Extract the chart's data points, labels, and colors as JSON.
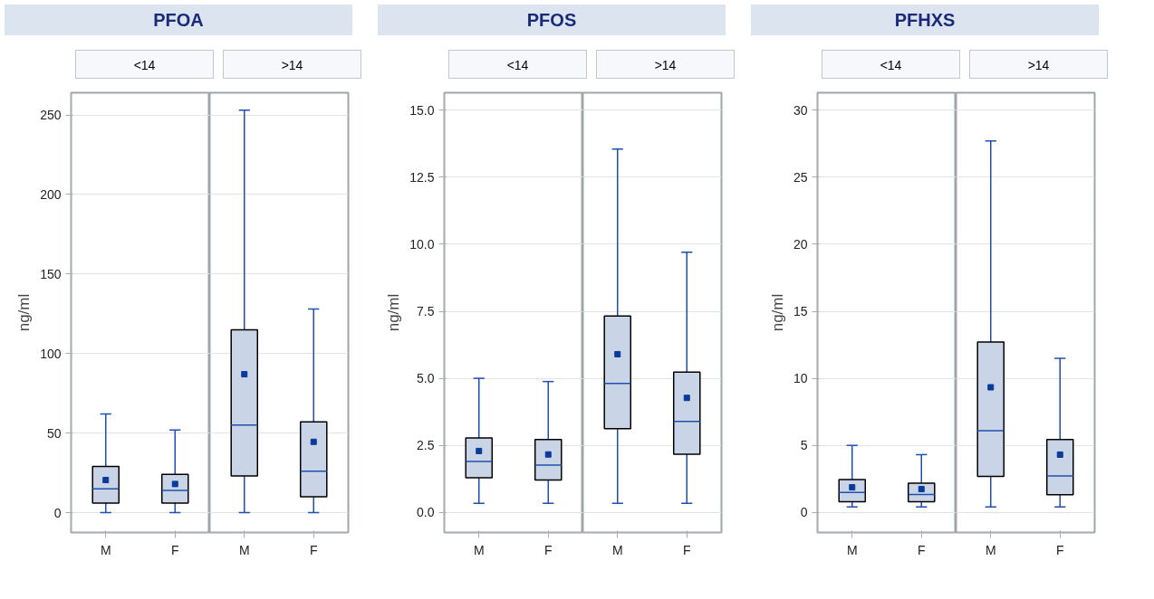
{
  "chart_data": [
    {
      "type": "box",
      "title": "PFOA",
      "ylabel": "ng/ml",
      "categories": [
        "M",
        "F",
        "M",
        "F"
      ],
      "annotations": [
        "<14",
        ">14"
      ],
      "ylim": [
        -12.5,
        264
      ],
      "yticks": [
        0,
        50,
        100,
        150,
        200,
        250
      ],
      "grid": "y",
      "marker": "square",
      "series": [
        {
          "color": "#c9d5e6",
          "boxes": [
            {
              "low": 0,
              "q1": 6,
              "median": 15,
              "q3": 29,
              "high": 62,
              "mean": 20.5
            },
            {
              "low": 0,
              "q1": 6,
              "median": 14,
              "q3": 24,
              "high": 52,
              "mean": 18
            },
            {
              "low": 0,
              "q1": 23,
              "median": 55,
              "q3": 115,
              "high": 253,
              "mean": 87
            },
            {
              "low": 0,
              "q1": 10,
              "median": 26,
              "q3": 57,
              "high": 128,
              "mean": 44.5
            }
          ]
        }
      ]
    },
    {
      "type": "box",
      "title": "PFOS",
      "ylabel": "ng/ml",
      "categories": [
        "M",
        "F",
        "M",
        "F"
      ],
      "annotations": [
        "<14",
        ">14"
      ],
      "ylim": [
        -0.75,
        15.65
      ],
      "yticks": [
        {
          "value": 0,
          "label": "0.0"
        },
        2.5,
        {
          "value": 5,
          "label": "5.0"
        },
        7.5,
        {
          "value": 10,
          "label": "10.0"
        },
        12.5,
        {
          "value": 15,
          "label": "15.0"
        }
      ],
      "grid": "y",
      "marker": "square",
      "series": [
        {
          "color": "#c9d5e6",
          "boxes": [
            {
              "low": 0.34,
              "q1": 1.29,
              "median": 1.9,
              "q3": 2.78,
              "high": 5.0,
              "mean": 2.29
            },
            {
              "low": 0.34,
              "q1": 1.21,
              "median": 1.76,
              "q3": 2.72,
              "high": 4.88,
              "mean": 2.16
            },
            {
              "low": 0.34,
              "q1": 3.12,
              "median": 4.81,
              "q3": 7.32,
              "high": 13.55,
              "mean": 5.9
            },
            {
              "low": 0.34,
              "q1": 2.17,
              "median": 3.39,
              "q3": 5.23,
              "high": 9.7,
              "mean": 4.27
            }
          ]
        }
      ]
    },
    {
      "type": "box",
      "title": "PFHXS",
      "ylabel": "ng/ml",
      "categories": [
        "M",
        "F",
        "M",
        "F"
      ],
      "annotations": [
        "<14",
        ">14"
      ],
      "ylim": [
        -1.5,
        31.3
      ],
      "yticks": [
        0,
        5,
        10,
        15,
        20,
        25,
        30
      ],
      "grid": "y",
      "marker": "square",
      "series": [
        {
          "color": "#c9d5e6",
          "boxes": [
            {
              "low": 0.41,
              "q1": 0.79,
              "median": 1.49,
              "q3": 2.44,
              "high": 4.99,
              "mean": 1.87
            },
            {
              "low": 0.41,
              "q1": 0.79,
              "median": 1.33,
              "q3": 2.17,
              "high": 4.31,
              "mean": 1.74
            },
            {
              "low": 0.41,
              "q1": 2.69,
              "median": 6.1,
              "q3": 12.7,
              "high": 27.7,
              "mean": 9.33
            },
            {
              "low": 0.41,
              "q1": 1.31,
              "median": 2.71,
              "q3": 5.44,
              "high": 11.5,
              "mean": 4.31
            }
          ]
        }
      ]
    }
  ]
}
